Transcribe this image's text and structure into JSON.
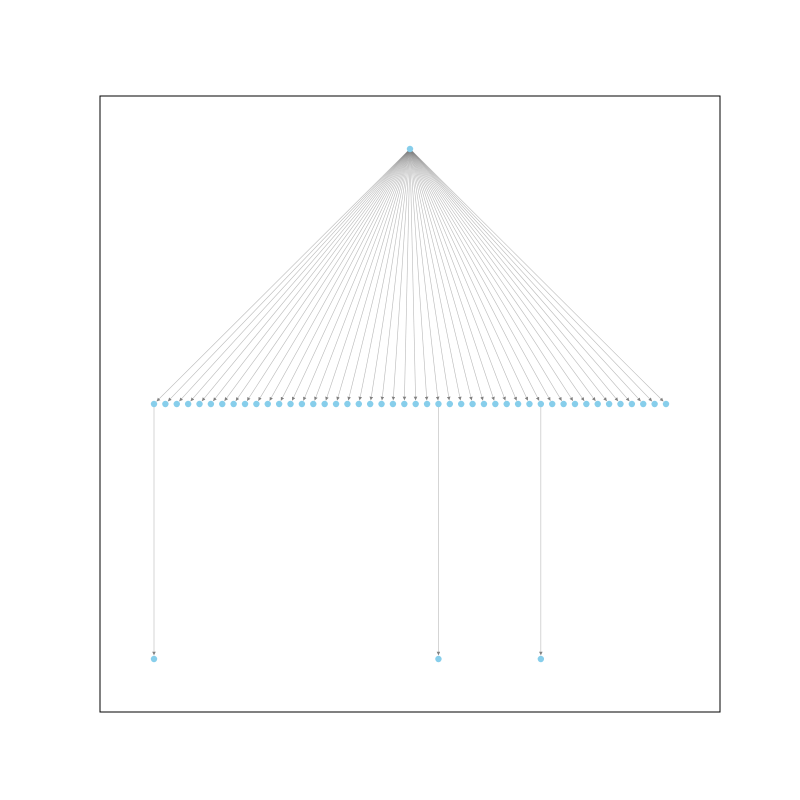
{
  "graph": {
    "layout": "tree",
    "node_color": "#87ceeb",
    "edge_color": "#808080",
    "directed": true,
    "root": {
      "id": "root"
    },
    "levels": [
      1,
      46,
      3
    ],
    "children_of_root": 46,
    "second_level_branches": [
      {
        "parent_index": 0,
        "children": 1
      },
      {
        "parent_index": 25,
        "children": 1
      },
      {
        "parent_index": 34,
        "children": 1
      }
    ],
    "total_nodes": 50,
    "total_edges": 49
  }
}
